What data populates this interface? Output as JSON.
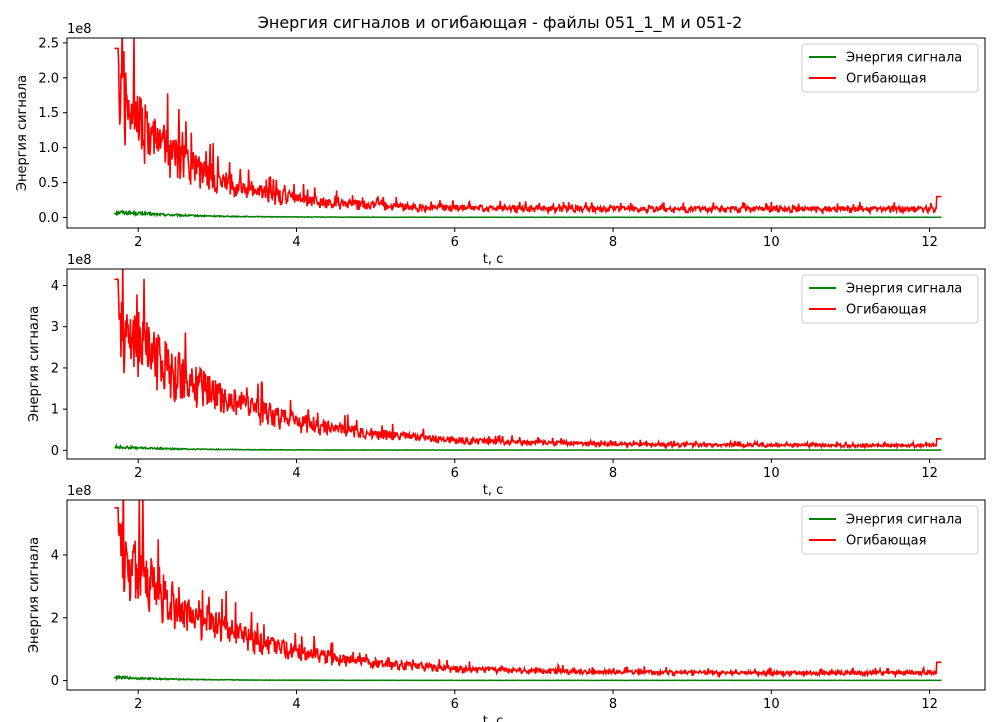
{
  "figure_title": "Энергия сигналов и огибающая - файлы 051_1_M и 051-2",
  "colors": {
    "energy": "#008000",
    "envelope": "#ff0000",
    "axes": "#000000",
    "legend_border": "#cccccc"
  },
  "chart_data": [
    {
      "type": "line",
      "xlabel": "t, c",
      "ylabel": "Энергия сигнала",
      "offset_text": "1e8",
      "xlim": [
        1.1,
        12.7
      ],
      "ylim": [
        -0.15,
        2.57
      ],
      "xticks": [
        2,
        4,
        6,
        8,
        10,
        12
      ],
      "xtick_labels": [
        "2",
        "4",
        "6",
        "8",
        "10",
        "12"
      ],
      "yticks": [
        0,
        0.5,
        1.0,
        1.5,
        2.0,
        2.5
      ],
      "ytick_labels": [
        "0.0",
        "0.5",
        "1.0",
        "1.5",
        "2.0",
        "2.5"
      ],
      "legend": [
        "Энергия сигнала",
        "Огибающая"
      ],
      "legend_loc": "upper right",
      "series": [
        {
          "name": "Энергия сигнала",
          "color": "#008000",
          "x_range": [
            1.7,
            12.15
          ],
          "start": 0.12,
          "spike": 0.12,
          "tail": 0.005,
          "decay": 0.8,
          "jitter": 0.3
        },
        {
          "name": "Огибающая",
          "color": "#ff0000",
          "x_range": [
            1.7,
            12.15
          ],
          "start": 2.42,
          "tail": 0.16,
          "decay": 0.95,
          "jitter": 0.6,
          "end_value": 0.3
        }
      ]
    },
    {
      "type": "line",
      "xlabel": "t, c",
      "ylabel": "Энергия сигнала",
      "offset_text": "1e8",
      "xlim": [
        1.1,
        12.7
      ],
      "ylim": [
        -0.21,
        4.4
      ],
      "xticks": [
        2,
        4,
        6,
        8,
        10,
        12
      ],
      "xtick_labels": [
        "2",
        "4",
        "6",
        "8",
        "10",
        "12"
      ],
      "yticks": [
        0,
        1,
        2,
        3,
        4
      ],
      "ytick_labels": [
        "0",
        "1",
        "2",
        "3",
        "4"
      ],
      "legend": [
        "Энергия сигнала",
        "Огибающая"
      ],
      "legend_loc": "upper right",
      "series": [
        {
          "name": "Энергия сигнала",
          "color": "#008000",
          "x_range": [
            1.7,
            12.15
          ],
          "start": 0.12,
          "spike": 0.12,
          "tail": 0.01,
          "decay": 0.8,
          "jitter": 0.3
        },
        {
          "name": "Огибающая",
          "color": "#ff0000",
          "x_range": [
            1.7,
            12.15
          ],
          "start": 4.15,
          "tail": 0.15,
          "decay": 1.4,
          "jitter": 0.55,
          "end_value": 0.28
        }
      ]
    },
    {
      "type": "line",
      "xlabel": "t, c",
      "ylabel": "Энергия сигнала",
      "offset_text": "1e8",
      "xlim": [
        1.1,
        12.7
      ],
      "ylim": [
        -0.3,
        5.75
      ],
      "xticks": [
        2,
        4,
        6,
        8,
        10,
        12
      ],
      "xtick_labels": [
        "2",
        "4",
        "6",
        "8",
        "10",
        "12"
      ],
      "yticks": [
        0,
        2,
        4
      ],
      "ytick_labels": [
        "0",
        "2",
        "4"
      ],
      "legend": [
        "Энергия сигнала",
        "Огибающая"
      ],
      "legend_loc": "upper right",
      "series": [
        {
          "name": "Энергия сигнала",
          "color": "#008000",
          "x_range": [
            1.7,
            12.15
          ],
          "start": 0.15,
          "spike": 0.15,
          "tail": 0.01,
          "decay": 0.8,
          "jitter": 0.3
        },
        {
          "name": "Огибающая",
          "color": "#ff0000",
          "x_range": [
            1.7,
            12.15
          ],
          "start": 5.5,
          "tail": 0.3,
          "decay": 1.3,
          "jitter": 0.5,
          "end_value": 0.58
        }
      ]
    }
  ]
}
